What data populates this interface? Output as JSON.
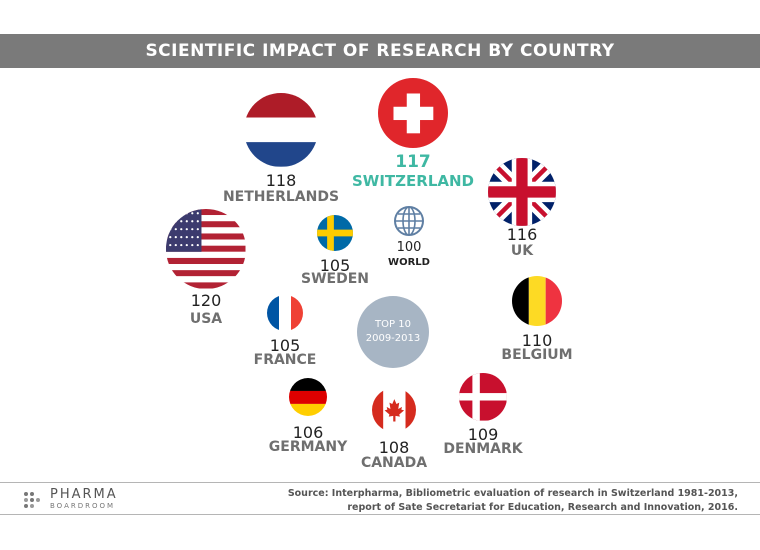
{
  "title": "SCIENTIFIC IMPACT OF RESEARCH BY COUNTRY",
  "badge": {
    "line1": "TOP 10",
    "line2": "2009-2013"
  },
  "chart_data": {
    "type": "bubble",
    "title": "SCIENTIFIC IMPACT OF RESEARCH BY COUNTRY",
    "subtitle": "TOP 10 2009-2013",
    "items": [
      {
        "country": "USA",
        "value": 120,
        "flag": "us-flag"
      },
      {
        "country": "NETHERLANDS",
        "value": 118,
        "flag": "netherlands-flag"
      },
      {
        "country": "SWITZERLAND",
        "value": 117,
        "flag": "switzerland-flag",
        "highlight": true
      },
      {
        "country": "UK",
        "value": 116,
        "flag": "uk-flag"
      },
      {
        "country": "BELGIUM",
        "value": 110,
        "flag": "belgium-flag"
      },
      {
        "country": "DENMARK",
        "value": 109,
        "flag": "denmark-flag"
      },
      {
        "country": "CANADA",
        "value": 108,
        "flag": "canada-flag"
      },
      {
        "country": "GERMANY",
        "value": 106,
        "flag": "germany-flag"
      },
      {
        "country": "SWEDEN",
        "value": 105,
        "flag": "sweden-flag"
      },
      {
        "country": "FRANCE",
        "value": 105,
        "flag": "france-flag"
      },
      {
        "country": "WORLD",
        "value": 100,
        "flag": "globe-icon",
        "reference": true
      }
    ]
  },
  "colors": {
    "highlight": "#3fb8a3",
    "title_bar": "#7a7a7a",
    "badge": "#a7b5c4"
  },
  "footer": {
    "logo_line1": "PHARMA",
    "logo_line2": "BOARDROOM",
    "source_line1": "Source: Interpharma, Bibliometric evaluation of research in Switzerland 1981-2013,",
    "source_line2": "report of Sate Secretariat for Education, Research and Innovation, 2016."
  }
}
